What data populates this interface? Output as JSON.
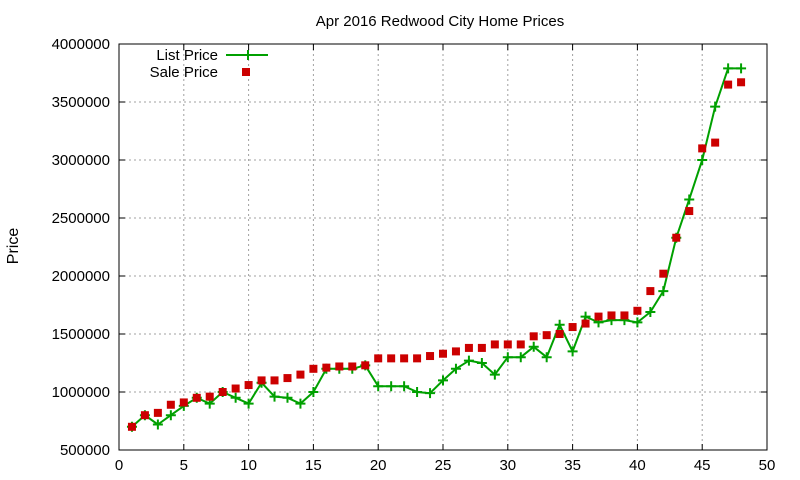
{
  "chart_data": {
    "type": "line",
    "title": "Apr 2016 Redwood City Home Prices",
    "xlabel": "",
    "ylabel": "Price",
    "xlim": [
      0,
      50
    ],
    "ylim": [
      500000,
      4000000
    ],
    "x_ticks": [
      "0",
      "5",
      "10",
      "15",
      "20",
      "25",
      "30",
      "35",
      "40",
      "45",
      "50"
    ],
    "y_ticks": [
      "500000",
      "1000000",
      "1500000",
      "2000000",
      "2500000",
      "3000000",
      "3500000",
      "4000000"
    ],
    "grid": true,
    "legend_position": "top-left",
    "x": [
      1,
      2,
      3,
      4,
      5,
      6,
      7,
      8,
      9,
      10,
      11,
      12,
      13,
      14,
      15,
      16,
      17,
      18,
      19,
      20,
      21,
      22,
      23,
      24,
      25,
      26,
      27,
      28,
      29,
      30,
      31,
      32,
      33,
      34,
      35,
      36,
      37,
      38,
      39,
      40,
      41,
      42,
      43,
      44,
      45,
      46,
      47,
      48
    ],
    "series": [
      {
        "name": "List Price",
        "style": "lines+points",
        "color": "#00a000",
        "values": [
          700000,
          800000,
          720000,
          800000,
          880000,
          950000,
          900000,
          1000000,
          950000,
          900000,
          1080000,
          960000,
          950000,
          900000,
          1000000,
          1200000,
          1200000,
          1200000,
          1230000,
          1050000,
          1050000,
          1050000,
          1000000,
          990000,
          1100000,
          1200000,
          1270000,
          1250000,
          1150000,
          1300000,
          1300000,
          1390000,
          1300000,
          1580000,
          1350000,
          1650000,
          1600000,
          1620000,
          1620000,
          1600000,
          1690000,
          1870000,
          2330000,
          2660000,
          3000000,
          3460000,
          3790000,
          3790000
        ]
      },
      {
        "name": "Sale Price",
        "style": "points",
        "color": "#cc0000",
        "values": [
          700000,
          800000,
          820000,
          890000,
          910000,
          950000,
          960000,
          1000000,
          1030000,
          1060000,
          1100000,
          1100000,
          1120000,
          1150000,
          1200000,
          1210000,
          1220000,
          1220000,
          1230000,
          1290000,
          1290000,
          1290000,
          1290000,
          1310000,
          1330000,
          1350000,
          1380000,
          1380000,
          1410000,
          1410000,
          1410000,
          1480000,
          1490000,
          1500000,
          1560000,
          1590000,
          1650000,
          1660000,
          1660000,
          1700000,
          1870000,
          2020000,
          2330000,
          2560000,
          3100000,
          3150000,
          3650000,
          3670000
        ]
      }
    ]
  }
}
